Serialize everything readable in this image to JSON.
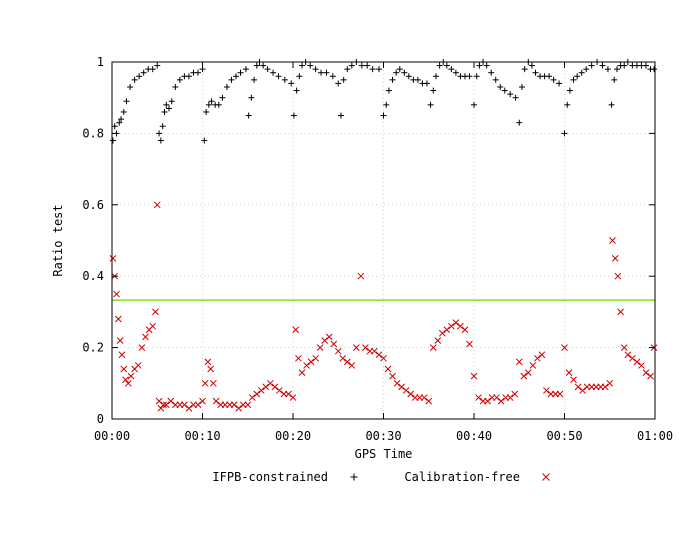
{
  "chart_data": {
    "type": "scatter",
    "xlabel": "GPS Time",
    "ylabel": "Ratio test",
    "xlim": [
      0,
      60
    ],
    "ylim": [
      0,
      1
    ],
    "x_unit": "minutes",
    "grid": true,
    "legend_position": "bottom",
    "x_ticks": [
      {
        "value": 0,
        "label": "00:00"
      },
      {
        "value": 10,
        "label": "00:10"
      },
      {
        "value": 20,
        "label": "00:20"
      },
      {
        "value": 30,
        "label": "00:30"
      },
      {
        "value": 40,
        "label": "00:40"
      },
      {
        "value": 50,
        "label": "00:50"
      },
      {
        "value": 60,
        "label": "01:00"
      }
    ],
    "y_ticks": [
      {
        "value": 0,
        "label": "0"
      },
      {
        "value": 0.2,
        "label": "0.2"
      },
      {
        "value": 0.4,
        "label": "0.4"
      },
      {
        "value": 0.6,
        "label": "0.6"
      },
      {
        "value": 0.8,
        "label": "0.8"
      },
      {
        "value": 1,
        "label": "1"
      }
    ],
    "threshold": {
      "y": 0.333,
      "color": "#80e020"
    },
    "series": [
      {
        "name": "IFPB-constrained",
        "marker": "plus",
        "color": "#000000",
        "x": [
          0.1,
          0.3,
          0.5,
          0.8,
          1.0,
          1.3,
          1.6,
          2.0,
          2.5,
          3.0,
          3.5,
          4.0,
          4.5,
          5.0,
          5.2,
          5.4,
          5.6,
          5.8,
          6.0,
          6.3,
          6.6,
          7.0,
          7.5,
          8.0,
          8.5,
          9.0,
          9.5,
          10.0,
          10.2,
          10.4,
          10.7,
          11.0,
          11.4,
          11.8,
          12.2,
          12.7,
          13.2,
          13.7,
          14.2,
          14.8,
          15.1,
          15.4,
          15.7,
          16.0,
          16.3,
          16.7,
          17.2,
          17.8,
          18.4,
          19.1,
          19.8,
          20.1,
          20.4,
          20.7,
          21.0,
          21.4,
          21.9,
          22.5,
          23.1,
          23.7,
          24.4,
          25.0,
          25.3,
          25.6,
          26.0,
          26.5,
          27.0,
          27.6,
          28.2,
          28.8,
          29.5,
          30.0,
          30.3,
          30.6,
          31.0,
          31.4,
          31.8,
          32.3,
          32.8,
          33.3,
          33.8,
          34.3,
          34.8,
          35.2,
          35.5,
          35.8,
          36.2,
          36.6,
          37.0,
          37.5,
          38.0,
          38.5,
          39.0,
          39.5,
          40.0,
          40.3,
          40.6,
          41.0,
          41.4,
          41.9,
          42.4,
          42.9,
          43.4,
          44.0,
          44.6,
          45.0,
          45.3,
          45.6,
          46.0,
          46.4,
          46.8,
          47.3,
          47.8,
          48.3,
          48.8,
          49.4,
          50.0,
          50.3,
          50.6,
          51.0,
          51.4,
          51.9,
          52.4,
          53.0,
          53.6,
          54.2,
          54.8,
          55.2,
          55.5,
          55.8,
          56.2,
          56.6,
          57.0,
          57.5,
          58.0,
          58.5,
          59.0,
          59.5,
          59.9
        ],
        "y": [
          0.78,
          0.82,
          0.8,
          0.83,
          0.84,
          0.86,
          0.89,
          0.93,
          0.95,
          0.96,
          0.97,
          0.98,
          0.98,
          0.99,
          0.8,
          0.78,
          0.82,
          0.86,
          0.88,
          0.87,
          0.89,
          0.93,
          0.95,
          0.96,
          0.96,
          0.97,
          0.97,
          0.98,
          0.78,
          0.86,
          0.88,
          0.89,
          0.88,
          0.88,
          0.9,
          0.93,
          0.95,
          0.96,
          0.97,
          0.98,
          0.85,
          0.9,
          0.95,
          0.99,
          1.0,
          0.99,
          0.98,
          0.97,
          0.96,
          0.95,
          0.94,
          0.85,
          0.92,
          0.96,
          0.99,
          1.0,
          0.99,
          0.98,
          0.97,
          0.97,
          0.96,
          0.94,
          0.85,
          0.95,
          0.98,
          0.99,
          1.0,
          0.99,
          0.99,
          0.98,
          0.98,
          0.85,
          0.88,
          0.92,
          0.95,
          0.97,
          0.98,
          0.97,
          0.96,
          0.95,
          0.95,
          0.94,
          0.94,
          0.88,
          0.92,
          0.96,
          0.99,
          1.0,
          0.99,
          0.98,
          0.97,
          0.96,
          0.96,
          0.96,
          0.88,
          0.96,
          0.99,
          1.0,
          0.99,
          0.97,
          0.95,
          0.93,
          0.92,
          0.91,
          0.9,
          0.83,
          0.93,
          0.98,
          1.0,
          0.99,
          0.97,
          0.96,
          0.96,
          0.96,
          0.95,
          0.94,
          0.8,
          0.88,
          0.92,
          0.95,
          0.96,
          0.97,
          0.98,
          0.99,
          1.0,
          0.99,
          0.98,
          0.88,
          0.95,
          0.98,
          0.99,
          0.99,
          1.0,
          0.99,
          0.99,
          0.99,
          0.99,
          0.98,
          0.98
        ]
      },
      {
        "name": "Calibration-free",
        "marker": "cross",
        "color": "#d00000",
        "x": [
          0.1,
          0.3,
          0.5,
          0.7,
          0.9,
          1.1,
          1.3,
          1.5,
          1.8,
          2.1,
          2.5,
          2.9,
          3.3,
          3.7,
          4.1,
          4.5,
          4.8,
          5.0,
          5.2,
          5.4,
          5.7,
          6.0,
          6.5,
          7.0,
          7.5,
          8.0,
          8.5,
          9.0,
          9.5,
          10.0,
          10.3,
          10.6,
          10.9,
          11.2,
          11.5,
          12.0,
          12.5,
          13.0,
          13.5,
          14.0,
          14.5,
          15.0,
          15.5,
          16.0,
          16.5,
          17.0,
          17.5,
          18.0,
          18.5,
          19.0,
          19.5,
          20.0,
          20.3,
          20.6,
          21.0,
          21.5,
          22.0,
          22.5,
          23.0,
          23.5,
          24.0,
          24.5,
          25.0,
          25.5,
          26.0,
          26.5,
          27.0,
          27.5,
          28.0,
          28.5,
          29.0,
          29.5,
          30.0,
          30.5,
          31.0,
          31.5,
          32.0,
          32.5,
          33.0,
          33.5,
          34.0,
          34.5,
          35.0,
          35.5,
          36.0,
          36.5,
          37.0,
          37.5,
          38.0,
          38.5,
          39.0,
          39.5,
          40.0,
          40.5,
          41.0,
          41.5,
          42.0,
          42.5,
          43.0,
          43.5,
          44.0,
          44.5,
          45.0,
          45.5,
          46.0,
          46.5,
          47.0,
          47.5,
          48.0,
          48.5,
          49.0,
          49.5,
          50.0,
          50.5,
          51.0,
          51.5,
          52.0,
          52.5,
          53.0,
          53.5,
          54.0,
          54.5,
          55.0,
          55.3,
          55.6,
          55.9,
          56.2,
          56.6,
          57.0,
          57.5,
          58.0,
          58.5,
          59.0,
          59.5,
          59.9
        ],
        "y": [
          0.45,
          0.4,
          0.35,
          0.28,
          0.22,
          0.18,
          0.14,
          0.11,
          0.1,
          0.12,
          0.14,
          0.15,
          0.2,
          0.23,
          0.25,
          0.26,
          0.3,
          0.6,
          0.05,
          0.03,
          0.04,
          0.04,
          0.05,
          0.04,
          0.04,
          0.04,
          0.03,
          0.04,
          0.04,
          0.05,
          0.1,
          0.16,
          0.14,
          0.1,
          0.05,
          0.04,
          0.04,
          0.04,
          0.04,
          0.03,
          0.04,
          0.04,
          0.06,
          0.07,
          0.08,
          0.09,
          0.1,
          0.09,
          0.08,
          0.07,
          0.07,
          0.06,
          0.25,
          0.17,
          0.13,
          0.15,
          0.16,
          0.17,
          0.2,
          0.22,
          0.23,
          0.21,
          0.19,
          0.17,
          0.16,
          0.15,
          0.2,
          0.4,
          0.2,
          0.19,
          0.19,
          0.18,
          0.17,
          0.14,
          0.12,
          0.1,
          0.09,
          0.08,
          0.07,
          0.06,
          0.06,
          0.06,
          0.05,
          0.2,
          0.22,
          0.24,
          0.25,
          0.26,
          0.27,
          0.26,
          0.25,
          0.21,
          0.12,
          0.06,
          0.05,
          0.05,
          0.06,
          0.06,
          0.05,
          0.06,
          0.06,
          0.07,
          0.16,
          0.12,
          0.13,
          0.15,
          0.17,
          0.18,
          0.08,
          0.07,
          0.07,
          0.07,
          0.2,
          0.13,
          0.11,
          0.09,
          0.08,
          0.09,
          0.09,
          0.09,
          0.09,
          0.09,
          0.1,
          0.5,
          0.45,
          0.4,
          0.3,
          0.2,
          0.18,
          0.17,
          0.16,
          0.15,
          0.13,
          0.12,
          0.2
        ]
      }
    ]
  }
}
